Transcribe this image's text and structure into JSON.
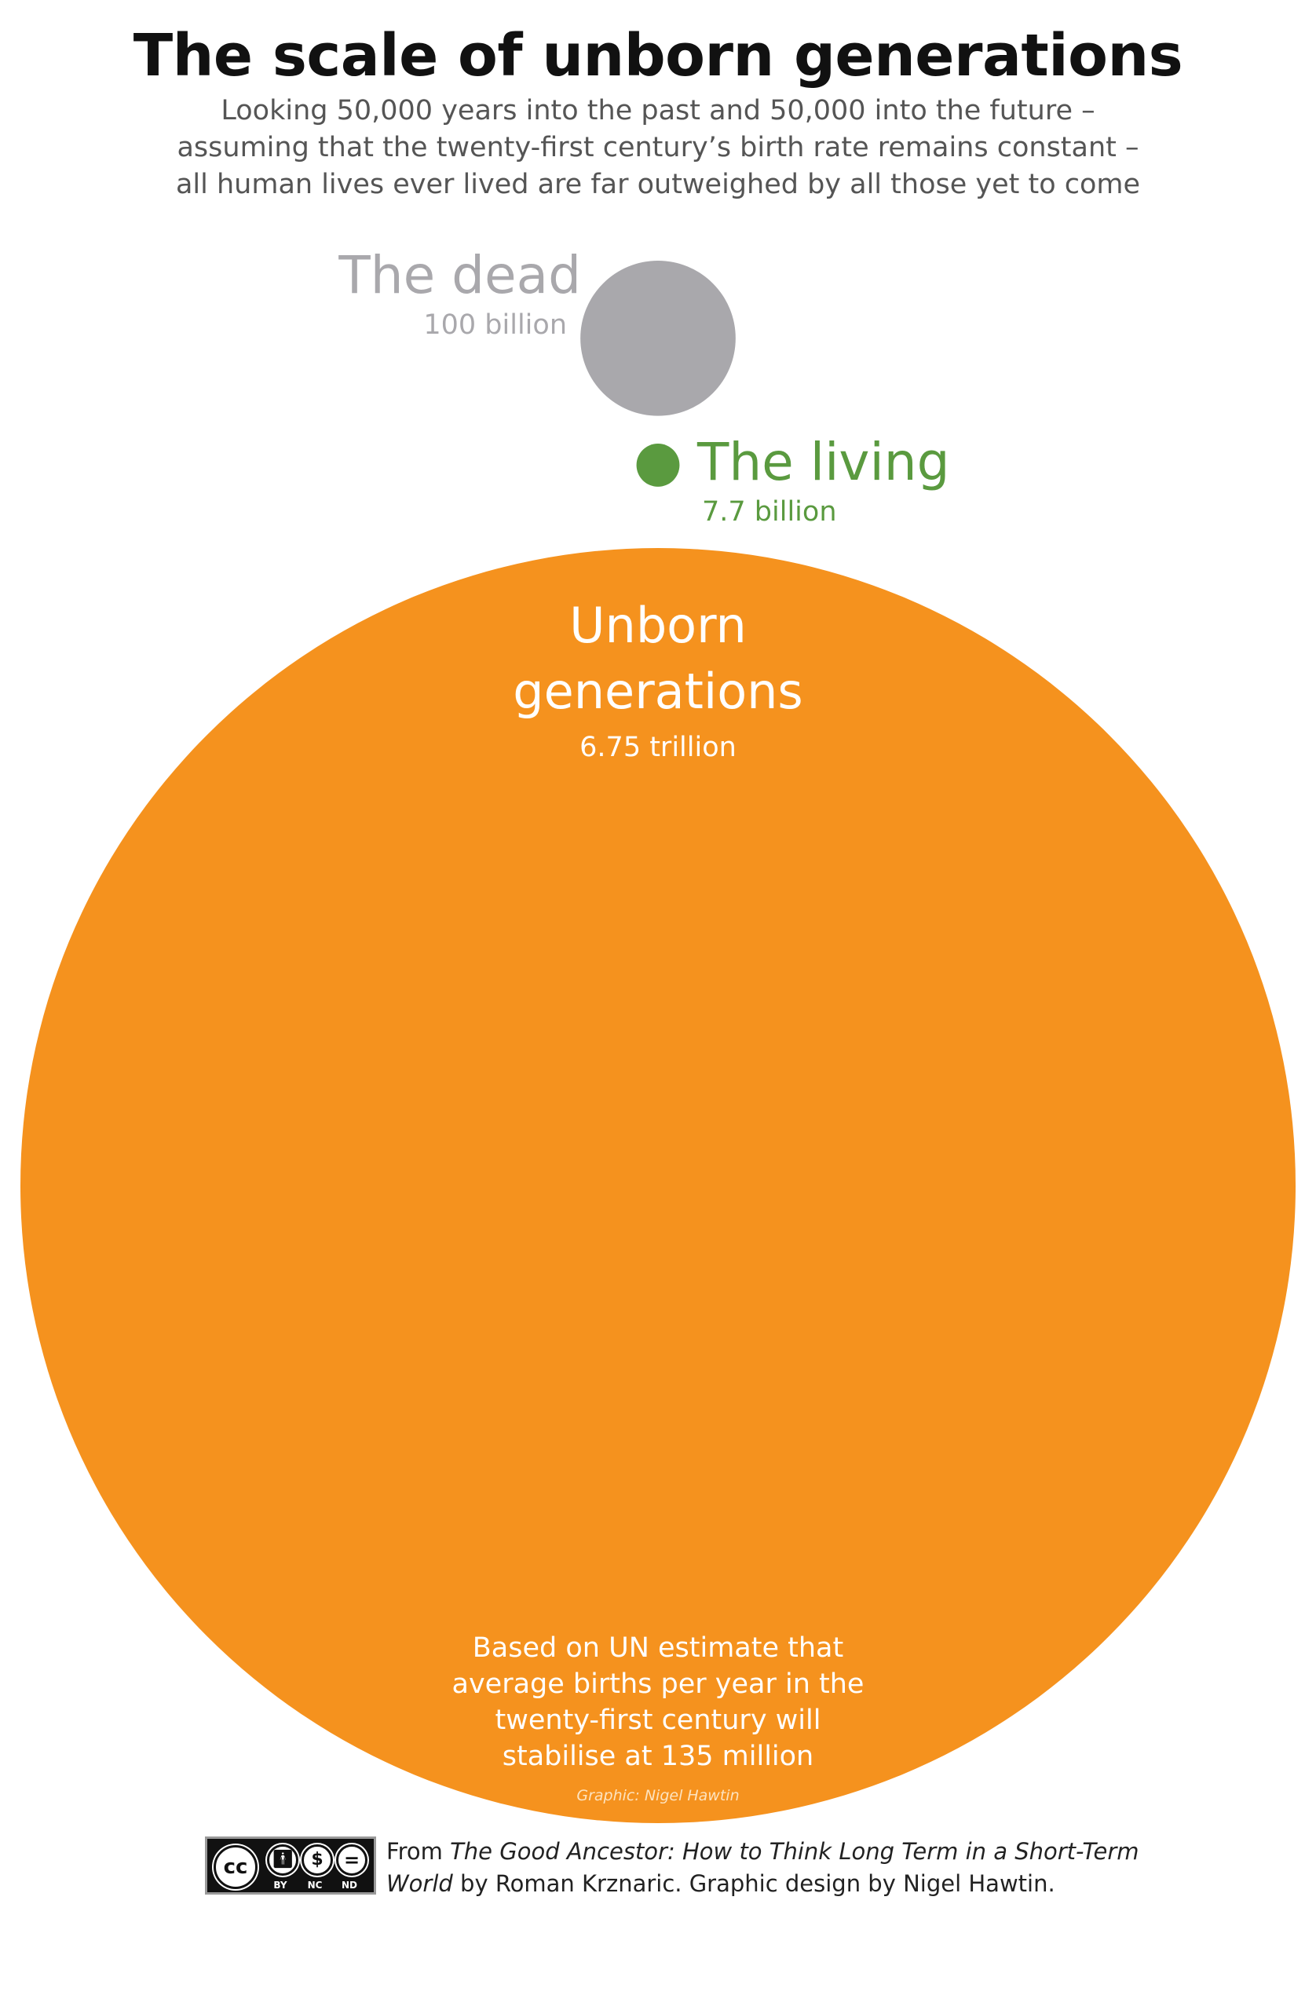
{
  "header": {
    "title": "The scale of unborn generations",
    "subtitle_lines": [
      "Looking 50,000 years into the past and 50,000 into the future –",
      "assuming that the twenty-first century’s birth rate remains constant –",
      "all human lives ever lived are far outweighed by all those yet to come"
    ]
  },
  "chart_data": {
    "type": "bubble",
    "unit": "people",
    "items": [
      {
        "name": "The dead",
        "value_label": "100 billion",
        "value": 100000000000,
        "color": "#a9a8ac"
      },
      {
        "name": "The living",
        "value_label": "7.7 billion",
        "value": 7700000000,
        "color": "#5a9a3f"
      },
      {
        "name_lines": [
          "Unborn",
          "generations"
        ],
        "value_label": "6.75 trillion",
        "value": 6750000000000,
        "color": "#f5921e"
      }
    ],
    "note_lines": [
      "Based on UN estimate that",
      "average births per year in the",
      "twenty-first century will",
      "stabilise at 135 million"
    ],
    "credit": "Graphic: Nigel Hawtin"
  },
  "license": {
    "badge": {
      "main": "cc",
      "labels": [
        "BY",
        "NC",
        "ND"
      ],
      "icons": [
        "person-icon",
        "no-dollar-icon",
        "equals-icon"
      ]
    }
  },
  "source": {
    "prefix": "From ",
    "book_title": "The Good Ancestor: How to Think Long Term in a Short-Term World",
    "suffix": " by Roman Krznaric. Graphic design by Nigel Hawtin."
  }
}
